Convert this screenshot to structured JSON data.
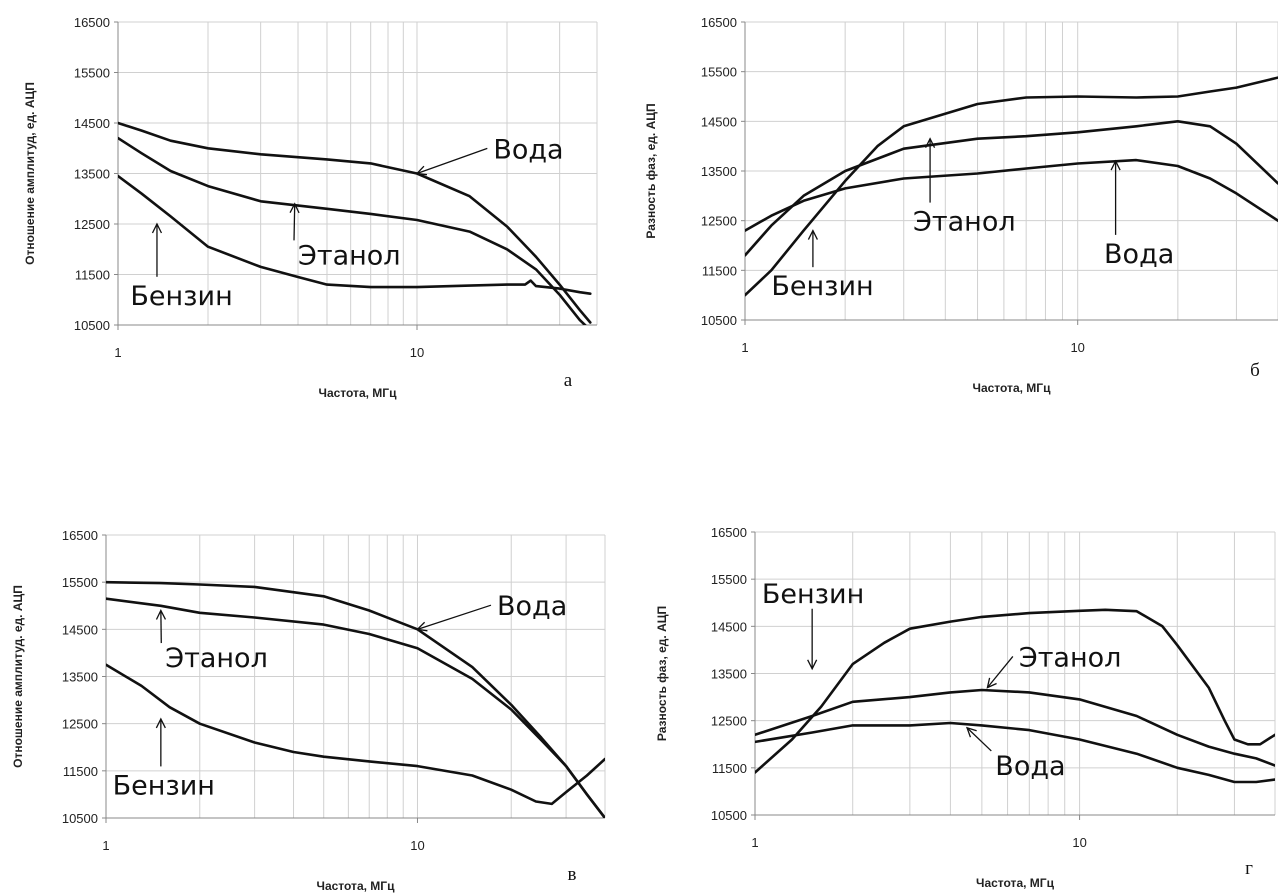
{
  "chart_data": [
    {
      "type": "line",
      "panel_label": "а",
      "xlabel": "Частота, МГц",
      "ylabel": "Отношение амплитуд, ед. АЦП",
      "xscale": "log",
      "xlim": [
        1,
        40
      ],
      "ylim": [
        10500,
        16500
      ],
      "xticks": [
        1,
        10
      ],
      "yticks": [
        10500,
        11500,
        12500,
        13500,
        14500,
        15500,
        16500
      ],
      "grid": true,
      "series": [
        {
          "name": "Вода",
          "x": [
            1,
            1.2,
            1.5,
            2,
            3,
            5,
            7,
            10,
            15,
            20,
            25,
            30,
            35,
            38
          ],
          "y": [
            14500,
            14350,
            14150,
            14000,
            13880,
            13780,
            13700,
            13500,
            13050,
            12450,
            11850,
            11300,
            10800,
            10550
          ]
        },
        {
          "name": "Этанол",
          "x": [
            1,
            1.2,
            1.5,
            2,
            3,
            5,
            7,
            10,
            15,
            20,
            25,
            30,
            35,
            38
          ],
          "y": [
            14200,
            13900,
            13550,
            13250,
            12950,
            12800,
            12700,
            12580,
            12350,
            12000,
            11600,
            11100,
            10600,
            10400
          ]
        },
        {
          "name": "Бензин",
          "x": [
            1,
            1.2,
            1.5,
            2,
            3,
            4,
            5,
            7,
            10,
            15,
            20,
            23,
            24,
            25,
            30,
            35,
            38
          ],
          "y": [
            13450,
            13100,
            12650,
            12050,
            11650,
            11450,
            11300,
            11250,
            11250,
            11280,
            11300,
            11300,
            11380,
            11270,
            11220,
            11150,
            11120
          ]
        }
      ],
      "annotations": [
        {
          "text": "Вода",
          "x": 18,
          "y": 13800,
          "arrow_to": [
            10,
            13500
          ]
        },
        {
          "text": "Этанол",
          "x": 4,
          "y": 11700,
          "arrow_to": [
            3.9,
            12900
          ]
        },
        {
          "text": "Бензин",
          "x": 1.1,
          "y": 10900,
          "arrow_to": [
            1.35,
            12500
          ]
        }
      ]
    },
    {
      "type": "line",
      "panel_label": "б",
      "xlabel": "Частота, МГц",
      "ylabel": "Разность фаз, ед. АЦП",
      "xscale": "log",
      "xlim": [
        1,
        40
      ],
      "ylim": [
        10500,
        16500
      ],
      "xticks": [
        1,
        10
      ],
      "yticks": [
        10500,
        11500,
        12500,
        13500,
        14500,
        15500,
        16500
      ],
      "grid": true,
      "series": [
        {
          "name": "Вода",
          "x": [
            1,
            1.2,
            1.5,
            2,
            3,
            5,
            7,
            10,
            15,
            20,
            25,
            30,
            40
          ],
          "y": [
            12300,
            12600,
            12900,
            13150,
            13350,
            13450,
            13550,
            13650,
            13720,
            13600,
            13350,
            13050,
            12500
          ]
        },
        {
          "name": "Этанол",
          "x": [
            1,
            1.2,
            1.5,
            2,
            3,
            5,
            7,
            10,
            15,
            20,
            25,
            30,
            40
          ],
          "y": [
            11800,
            12400,
            13000,
            13500,
            13950,
            14150,
            14200,
            14280,
            14400,
            14500,
            14400,
            14050,
            13250
          ]
        },
        {
          "name": "Бензин",
          "x": [
            1,
            1.2,
            1.5,
            2,
            2.5,
            3,
            5,
            7,
            10,
            15,
            20,
            25,
            30,
            40
          ],
          "y": [
            11000,
            11500,
            12300,
            13300,
            14000,
            14400,
            14850,
            14980,
            15000,
            14980,
            15000,
            15100,
            15180,
            15380
          ]
        }
      ],
      "annotations": [
        {
          "text": "Вода",
          "x": 12,
          "y": 11650,
          "arrow_to": [
            13,
            13700
          ]
        },
        {
          "text": "Этанол",
          "x": 3.2,
          "y": 12300,
          "arrow_to": [
            3.6,
            14150
          ]
        },
        {
          "text": "Бензин",
          "x": 1.2,
          "y": 11000,
          "arrow_to": [
            1.6,
            12300
          ]
        }
      ]
    },
    {
      "type": "line",
      "panel_label": "в",
      "xlabel": "Частота, МГц",
      "ylabel": "Отношение амплитуд. ед. АЦП",
      "xscale": "log",
      "xlim": [
        1,
        40
      ],
      "ylim": [
        10500,
        16500
      ],
      "xticks": [
        1,
        10
      ],
      "yticks": [
        10500,
        11500,
        12500,
        13500,
        14500,
        15500,
        16500
      ],
      "grid": true,
      "series": [
        {
          "name": "Вода",
          "x": [
            1,
            1.5,
            2,
            3,
            5,
            7,
            10,
            15,
            20,
            25,
            30,
            35,
            40
          ],
          "y": [
            15500,
            15480,
            15450,
            15400,
            15200,
            14900,
            14500,
            13700,
            12900,
            12200,
            11600,
            11000,
            10500
          ]
        },
        {
          "name": "Этанол",
          "x": [
            1,
            1.5,
            2,
            3,
            5,
            7,
            10,
            15,
            20,
            25,
            30,
            35,
            40
          ],
          "y": [
            15150,
            15000,
            14850,
            14750,
            14600,
            14400,
            14100,
            13450,
            12800,
            12150,
            11600,
            11000,
            10500
          ]
        },
        {
          "name": "Бензин",
          "x": [
            1,
            1.3,
            1.6,
            2,
            3,
            4,
            5,
            7,
            10,
            15,
            20,
            24,
            27,
            30,
            35,
            40
          ],
          "y": [
            13750,
            13300,
            12850,
            12500,
            12100,
            11900,
            11800,
            11700,
            11600,
            11400,
            11100,
            10850,
            10800,
            11050,
            11400,
            11750
          ]
        }
      ],
      "annotations": [
        {
          "text": "Вода",
          "x": 18,
          "y": 14800,
          "arrow_to": [
            10,
            14500
          ]
        },
        {
          "text": "Этанол",
          "x": 1.55,
          "y": 13700,
          "arrow_to": [
            1.5,
            14900
          ]
        },
        {
          "text": "Бензин",
          "x": 1.05,
          "y": 11000,
          "arrow_to": [
            1.5,
            12600
          ]
        }
      ]
    },
    {
      "type": "line",
      "panel_label": "г",
      "xlabel": "Частота, МГц",
      "ylabel": "Разность фаз, ед. АЦП",
      "xscale": "log",
      "xlim": [
        1,
        40
      ],
      "ylim": [
        10500,
        16500
      ],
      "xticks": [
        1,
        10
      ],
      "yticks": [
        10500,
        11500,
        12500,
        13500,
        14500,
        15500,
        16500
      ],
      "grid": true,
      "series": [
        {
          "name": "Вода",
          "x": [
            1,
            1.5,
            2,
            3,
            4,
            5,
            7,
            10,
            15,
            20,
            25,
            30,
            35,
            40
          ],
          "y": [
            12050,
            12250,
            12400,
            12400,
            12450,
            12400,
            12300,
            12100,
            11800,
            11500,
            11350,
            11200,
            11200,
            11250
          ]
        },
        {
          "name": "Этанол",
          "x": [
            1,
            1.5,
            2,
            3,
            4,
            5,
            7,
            10,
            15,
            20,
            25,
            30,
            35,
            40
          ],
          "y": [
            12200,
            12600,
            12900,
            13000,
            13100,
            13150,
            13100,
            12950,
            12600,
            12200,
            11950,
            11800,
            11700,
            11550
          ]
        },
        {
          "name": "Бензин",
          "x": [
            1,
            1.3,
            1.6,
            2,
            2.5,
            3,
            4,
            5,
            7,
            10,
            12,
            15,
            18,
            20,
            25,
            28,
            30,
            33,
            36,
            40
          ],
          "y": [
            11400,
            12100,
            12800,
            13700,
            14150,
            14450,
            14600,
            14700,
            14780,
            14830,
            14850,
            14820,
            14500,
            14100,
            13200,
            12500,
            12100,
            12000,
            12000,
            12200
          ]
        }
      ],
      "annotations": [
        {
          "text": "Вода",
          "x": 5.5,
          "y": 11350,
          "arrow_to": [
            4.5,
            12350
          ]
        },
        {
          "text": "Этанол",
          "x": 6.5,
          "y": 13650,
          "arrow_to": [
            5.2,
            13200
          ]
        },
        {
          "text": "Бензин",
          "x": 1.05,
          "y": 15000,
          "arrow_to": [
            1.5,
            13600
          ]
        }
      ]
    }
  ]
}
